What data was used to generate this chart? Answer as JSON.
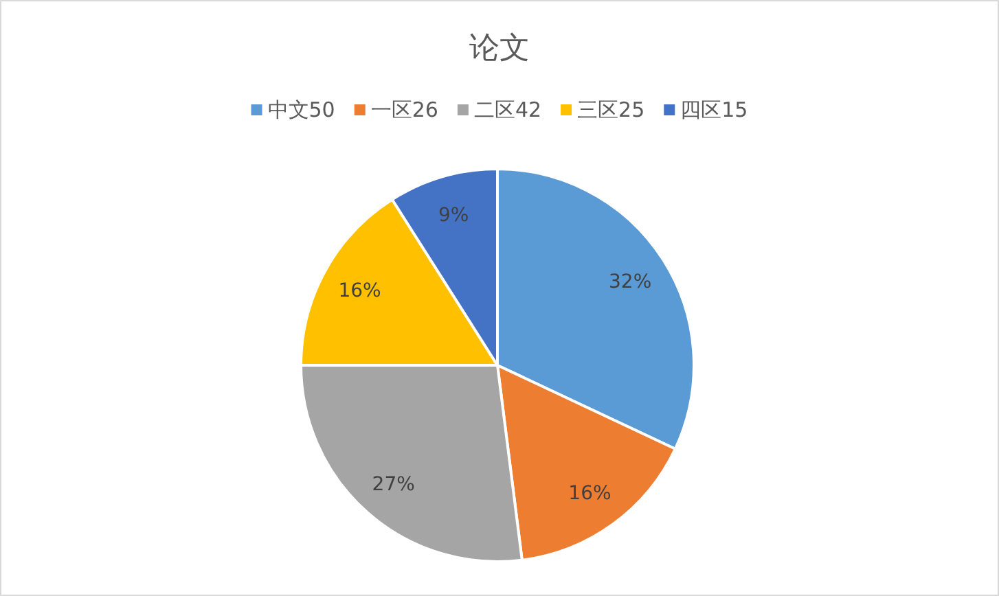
{
  "chart_data": {
    "type": "pie",
    "title": "论文",
    "categories": [
      "中文50",
      "一区26",
      "二区42",
      "三区25",
      "四区15"
    ],
    "values": [
      32,
      16,
      27,
      16,
      9
    ],
    "value_labels": [
      "32%",
      "16%",
      "27%",
      "16%",
      "9%"
    ],
    "colors": [
      "#5b9bd5",
      "#ed7d31",
      "#a5a5a5",
      "#ffc000",
      "#4472c4"
    ],
    "legend": "top"
  }
}
